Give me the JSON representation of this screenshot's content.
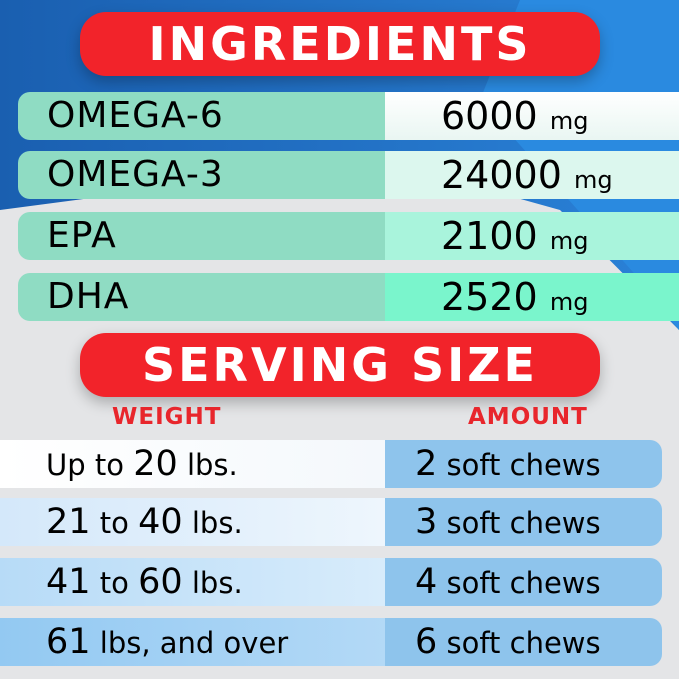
{
  "ingredients": {
    "title": "INGREDIENTS",
    "rows": [
      {
        "name": "OMEGA-6",
        "amount": "6000",
        "unit": "mg"
      },
      {
        "name": "OMEGA-3",
        "amount": "24000",
        "unit": "mg"
      },
      {
        "name": "EPA",
        "amount": "2100",
        "unit": "mg"
      },
      {
        "name": "DHA",
        "amount": "2520",
        "unit": "mg"
      }
    ]
  },
  "serving": {
    "title": "SERVING SIZE",
    "weight_header": "WEIGHT",
    "amount_header": "AMOUNT",
    "rows": [
      {
        "w1": "Up to ",
        "w2": "20",
        "w3": " lbs.",
        "n": "2",
        "chews": " soft chews"
      },
      {
        "w1": "",
        "w2": "21",
        "w3": " to ",
        "w4": "40",
        "w5": " lbs.",
        "n": "3",
        "chews": " soft chews"
      },
      {
        "w1": "",
        "w2": "41",
        "w3": " to ",
        "w4": "60",
        "w5": " lbs.",
        "n": "4",
        "chews": " soft chews"
      },
      {
        "w1": "",
        "w2": "61",
        "w3": " lbs, and over",
        "n": "6",
        "chews": " soft chews"
      }
    ]
  },
  "colors": {
    "red": "#f2232a",
    "blue": "#1f6fc4",
    "teal": "#8fdcc3",
    "light_blue": "#8ec4ec"
  }
}
